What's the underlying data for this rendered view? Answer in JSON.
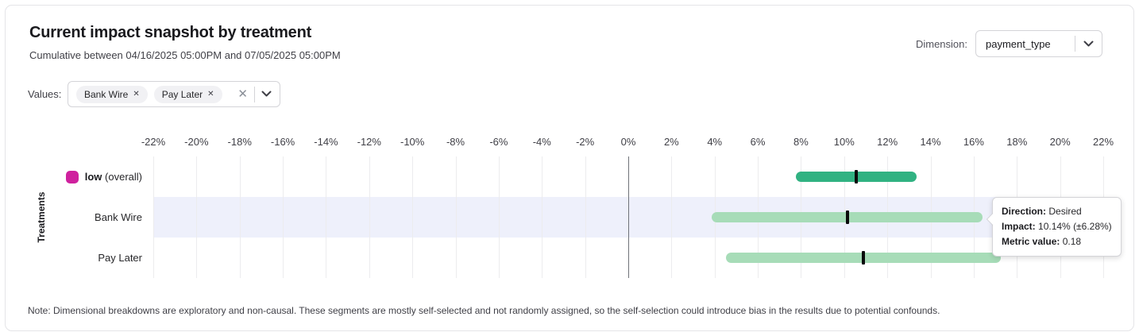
{
  "header": {
    "title": "Current impact snapshot by treatment",
    "subtitle": "Cumulative between 04/16/2025 05:00PM and 07/05/2025 05:00PM",
    "dimension_label": "Dimension:",
    "dimension_value": "payment_type"
  },
  "filters": {
    "values_label": "Values:",
    "tags": [
      {
        "label": "Bank Wire",
        "remove_icon": "✕"
      },
      {
        "label": "Pay Later",
        "remove_icon": "✕"
      }
    ],
    "clear_icon": "✕"
  },
  "colors": {
    "overall_bar": "#31b282",
    "segment_bar": "#a7dcb8",
    "marker": "#0b0b0c",
    "swatch": "#cf219e",
    "row_highlight": "#eef0fb"
  },
  "chart_data": {
    "type": "bar",
    "orientation": "horizontal-interval",
    "title": "Current impact snapshot by treatment",
    "xlabel": "",
    "ylabel": "Treatments",
    "xlim": [
      -22,
      22
    ],
    "x_tick_step": 2,
    "x_tick_labels": [
      "-22%",
      "-20%",
      "-18%",
      "-16%",
      "-14%",
      "-12%",
      "-10%",
      "-8%",
      "-6%",
      "-4%",
      "-2%",
      "0%",
      "2%",
      "4%",
      "6%",
      "8%",
      "10%",
      "12%",
      "14%",
      "16%",
      "18%",
      "20%",
      "22%"
    ],
    "grid": "vertical",
    "legend_position": "row-labels",
    "rows": [
      {
        "label": "low",
        "label_note": "(overall)",
        "impact_pct": 10.55,
        "ci_low_pct": 7.75,
        "ci_high_pct": 13.35,
        "bar_color_key": "overall_bar",
        "has_swatch": true,
        "highlighted": false
      },
      {
        "label": "Bank Wire",
        "label_note": "",
        "impact_pct": 10.14,
        "ci_low_pct": 3.86,
        "ci_high_pct": 16.42,
        "bar_color_key": "segment_bar",
        "has_swatch": false,
        "highlighted": true
      },
      {
        "label": "Pay Later",
        "label_note": "",
        "impact_pct": 10.89,
        "ci_low_pct": 4.53,
        "ci_high_pct": 17.25,
        "bar_color_key": "segment_bar",
        "has_swatch": false,
        "highlighted": false
      }
    ]
  },
  "tooltip": {
    "rows": [
      {
        "label": "Direction:",
        "value": "Desired"
      },
      {
        "label": "Impact:",
        "value": "10.14% (±6.28%)"
      },
      {
        "label": "Metric value:",
        "value": "0.18"
      }
    ]
  },
  "note": "Note: Dimensional breakdowns are exploratory and non-causal. These segments are mostly self-selected and not randomly assigned, so the self-selection could introduce bias in the results due to potential confounds."
}
